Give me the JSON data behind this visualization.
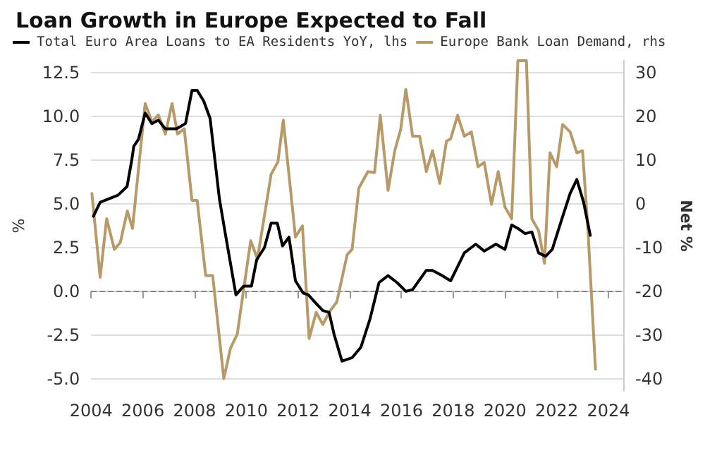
{
  "chart_data": {
    "type": "line",
    "title": "Loan Growth in Europe Expected to Fall",
    "ylabel": "%",
    "y2label": "Net %",
    "xlim": [
      2004,
      2024.6
    ],
    "xticks": [
      2004,
      2006,
      2008,
      2010,
      2012,
      2014,
      2016,
      2018,
      2020,
      2022,
      2024
    ],
    "ylim": [
      -5.7,
      13.2
    ],
    "yticks": [
      {
        "value": -5,
        "label": "-5.0"
      },
      -2.5,
      {
        "value": 0,
        "label": "0.0"
      },
      2.5,
      {
        "value": 5,
        "label": "5.0"
      },
      7.5,
      {
        "value": 10,
        "label": "10.0"
      },
      12.5
    ],
    "y2lim": [
      -42.8,
      32.8
    ],
    "y2ticks": [
      -40,
      -30,
      -20,
      -10,
      0,
      10,
      20,
      30
    ],
    "grid": "y",
    "legend": "top",
    "marker": "none",
    "line_style": "solid",
    "ref_lines": [
      {
        "axis": "y",
        "value": 0,
        "color": "#888888",
        "line_style": "dashed"
      }
    ],
    "series": [
      {
        "name": "Total Euro Area Loans to EA Residents YoY, lhs",
        "color": "#000000",
        "x": [
          2004.09,
          2004.35,
          2005.04,
          2005.39,
          2005.57,
          2005.65,
          2005.83,
          2006.09,
          2006.35,
          2006.6,
          2006.87,
          2007.3,
          2007.65,
          2007.9,
          2008.1,
          2008.35,
          2008.6,
          2008.96,
          2009.2,
          2009.6,
          2009.9,
          2010.2,
          2010.4,
          2010.7,
          2010.96,
          2011.2,
          2011.4,
          2011.65,
          2011.9,
          2012.2,
          2012.4,
          2012.7,
          2012.96,
          2013.2,
          2013.4,
          2013.7,
          2014.09,
          2014.43,
          2014.78,
          2015.13,
          2015.48,
          2015.83,
          2016.17,
          2016.43,
          2016.96,
          2017.2,
          2017.57,
          2017.9,
          2018.43,
          2018.87,
          2019.2,
          2019.65,
          2020.0,
          2020.26,
          2020.5,
          2020.78,
          2021.04,
          2021.3,
          2021.57,
          2021.83,
          2022.17,
          2022.52,
          2022.78,
          2023.04,
          2023.3
        ],
        "values": [
          4.3,
          5.1,
          5.5,
          6.0,
          7.5,
          8.3,
          8.7,
          10.2,
          9.6,
          9.8,
          9.3,
          9.3,
          9.6,
          11.5,
          11.5,
          10.9,
          9.9,
          5.3,
          3.2,
          -0.2,
          0.3,
          0.3,
          1.8,
          2.5,
          3.9,
          3.9,
          2.6,
          3.1,
          0.6,
          -0.1,
          -0.2,
          -0.7,
          -1.1,
          -1.2,
          -2.5,
          -4.0,
          -3.8,
          -3.2,
          -1.6,
          0.5,
          0.9,
          0.5,
          0.0,
          0.1,
          1.2,
          1.2,
          0.9,
          0.6,
          2.2,
          2.7,
          2.3,
          2.7,
          2.4,
          3.8,
          3.6,
          3.3,
          3.4,
          2.2,
          2.0,
          2.4,
          4.0,
          5.6,
          6.4,
          5.1,
          3.2
        ]
      },
      {
        "name": "Europe Bank Loan Demand, rhs",
        "color": "#b89a68",
        "axis": "y2",
        "x": [
          2004.03,
          2004.35,
          2004.6,
          2004.9,
          2005.13,
          2005.4,
          2005.6,
          2006.09,
          2006.35,
          2006.6,
          2006.87,
          2007.13,
          2007.34,
          2007.6,
          2007.9,
          2008.1,
          2008.43,
          2008.7,
          2009.13,
          2009.39,
          2009.65,
          2010.17,
          2010.43,
          2010.96,
          2011.22,
          2011.43,
          2011.9,
          2012.17,
          2012.43,
          2012.7,
          2012.96,
          2013.2,
          2013.5,
          2013.9,
          2014.09,
          2014.35,
          2014.7,
          2014.96,
          2015.18,
          2015.48,
          2015.74,
          2015.97,
          2016.17,
          2016.43,
          2016.7,
          2016.96,
          2017.2,
          2017.48,
          2017.74,
          2017.9,
          2018.17,
          2018.43,
          2018.7,
          2018.96,
          2019.2,
          2019.48,
          2019.74,
          2020.0,
          2020.26,
          2020.5,
          2020.83,
          2021.04,
          2021.3,
          2021.53,
          2021.74,
          2022.0,
          2022.23,
          2022.52,
          2022.78,
          2023.0,
          2023.2,
          2023.5
        ],
        "values": [
          2.4,
          -16.8,
          -3.4,
          -10.4,
          -8.8,
          -1.6,
          -5.6,
          23,
          18.8,
          20.4,
          16,
          23,
          16,
          17.2,
          0.8,
          0.8,
          -16.4,
          -16.4,
          -40,
          -33,
          -29.8,
          -8.4,
          -12.6,
          6.8,
          9.6,
          19.2,
          -7.6,
          -5,
          -30.8,
          -24.8,
          -27.6,
          -24.8,
          -22.4,
          -11.6,
          -10.4,
          3.6,
          7.4,
          7.2,
          20.3,
          3.1,
          12.2,
          17.1,
          26.2,
          15.5,
          15.5,
          7.4,
          12.2,
          4.7,
          14.4,
          14.9,
          20.3,
          15.5,
          16.5,
          8.5,
          9.5,
          -0.1,
          7.4,
          -0.7,
          -3.4,
          32.8,
          32.8,
          -3.4,
          -6.1,
          -13.6,
          11.7,
          8.5,
          18.2,
          16.5,
          11.7,
          12.2,
          -5,
          -37.8
        ]
      }
    ]
  }
}
